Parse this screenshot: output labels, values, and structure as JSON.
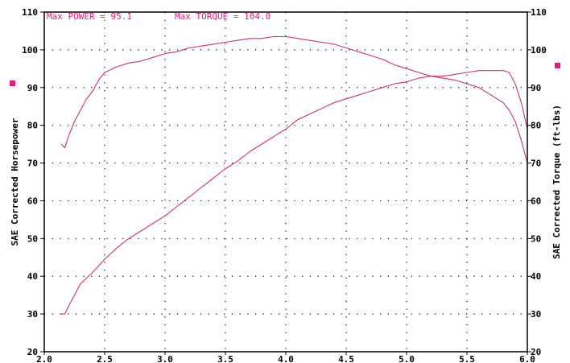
{
  "summary": {
    "power_label": "Max POWER = 95.1",
    "torque_label": "Max TORQUE = 104.0"
  },
  "colors": {
    "series": "#cc3366",
    "summary_text": "#e0207a",
    "legend_marker": "#e0207a",
    "frame": "#000000",
    "grid_dots": "#000000"
  },
  "chart_data": {
    "type": "line",
    "x_ticks": [
      "2.0",
      "2.5",
      "3.0",
      "3.5",
      "4.0",
      "4.5",
      "5.0",
      "5.5",
      "6.0"
    ],
    "y_ticks": [
      "20",
      "30",
      "40",
      "50",
      "60",
      "70",
      "80",
      "90",
      "100",
      "110"
    ],
    "xlim": [
      2.0,
      6.0
    ],
    "ylim": [
      20,
      110
    ],
    "grid": "dotted",
    "ylabel_left": "SAE Corrected Horsepower",
    "ylabel_right": "SAE Corrected Torque (ft-lbs)",
    "series": [
      {
        "role": "torque",
        "x": [
          2.14,
          2.17,
          2.2,
          2.25,
          2.3,
          2.35,
          2.4,
          2.45,
          2.5,
          2.6,
          2.7,
          2.8,
          2.9,
          3.0,
          3.1,
          3.2,
          3.3,
          3.4,
          3.5,
          3.6,
          3.7,
          3.8,
          3.9,
          4.0,
          4.1,
          4.2,
          4.3,
          4.4,
          4.5,
          4.6,
          4.7,
          4.8,
          4.9,
          5.0,
          5.1,
          5.2,
          5.3,
          5.4,
          5.5,
          5.6,
          5.7,
          5.8,
          5.85,
          5.9,
          5.95,
          6.0
        ],
        "y": [
          75,
          74,
          77,
          81,
          84,
          87,
          89,
          92,
          94,
          95.5,
          96.5,
          97,
          98,
          99,
          99.5,
          100.5,
          101,
          101.5,
          102,
          102.5,
          103,
          103,
          103.5,
          103.5,
          103,
          102.5,
          102,
          101.5,
          100.5,
          99.5,
          98.5,
          97.5,
          96,
          95,
          94,
          93,
          92.5,
          92,
          91,
          90,
          88,
          86,
          84,
          81,
          76,
          70
        ]
      },
      {
        "role": "horsepower",
        "x": [
          2.14,
          2.17,
          2.2,
          2.25,
          2.3,
          2.4,
          2.5,
          2.6,
          2.7,
          2.8,
          2.9,
          3.0,
          3.1,
          3.2,
          3.3,
          3.4,
          3.5,
          3.6,
          3.7,
          3.8,
          3.9,
          4.0,
          4.1,
          4.2,
          4.3,
          4.4,
          4.5,
          4.6,
          4.7,
          4.8,
          4.9,
          5.0,
          5.1,
          5.2,
          5.3,
          5.4,
          5.5,
          5.6,
          5.7,
          5.8,
          5.85,
          5.9,
          5.95,
          6.0
        ],
        "y": [
          30,
          30,
          32,
          35,
          38,
          41,
          44.5,
          47.5,
          50,
          52,
          54,
          56,
          58.5,
          61,
          63.5,
          66,
          68.5,
          70.5,
          73,
          75,
          77,
          79,
          81.5,
          83,
          84.5,
          86,
          87,
          88,
          89,
          90,
          91,
          91.5,
          92.5,
          93,
          93,
          93.5,
          94,
          94.5,
          94.5,
          94.5,
          94,
          91,
          86,
          79
        ]
      }
    ]
  }
}
